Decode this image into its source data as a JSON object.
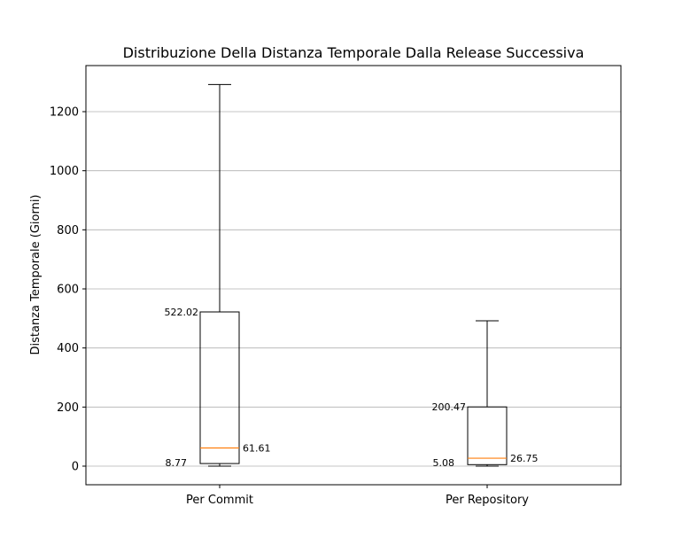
{
  "chart_data": {
    "type": "box",
    "title": "Distribuzione Della Distanza Temporale Dalla Release Successiva",
    "xlabel": "",
    "ylabel": "Distanza Temporale (Giorni)",
    "ylim": [
      -60,
      1360
    ],
    "yticks": [
      0,
      200,
      400,
      600,
      800,
      1000,
      1200
    ],
    "grid": "horizontal",
    "median_color": "#ff7f0e",
    "box_color": "#000000",
    "categories": [
      "Per Commit",
      "Per Repository"
    ],
    "boxes": [
      {
        "name": "Per Commit",
        "whisker_low": 0,
        "q1": 8.77,
        "median": 61.61,
        "q3": 522.02,
        "whisker_high": 1292,
        "labels": {
          "q1": "8.77",
          "median": "61.61",
          "q3": "522.02"
        }
      },
      {
        "name": "Per Repository",
        "whisker_low": 0,
        "q1": 5.08,
        "median": 26.75,
        "q3": 200.47,
        "whisker_high": 492,
        "labels": {
          "q1": "5.08",
          "median": "26.75",
          "q3": "200.47"
        }
      }
    ]
  }
}
